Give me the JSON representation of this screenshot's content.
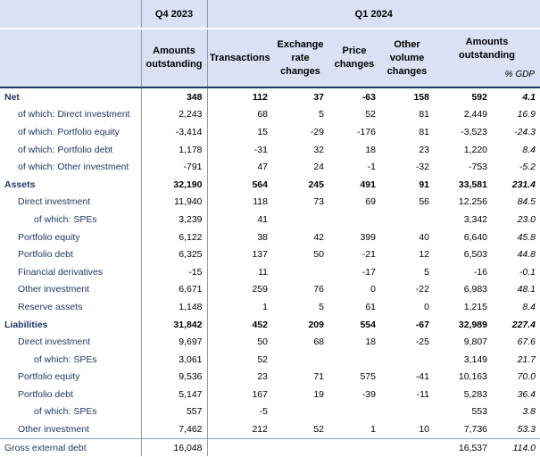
{
  "header": {
    "period_q4": "Q4 2023",
    "period_q1": "Q1 2024",
    "columns": {
      "amounts_outstanding_q4": "Amounts outstanding",
      "transactions": "Transactions",
      "exchange_rate_changes": "Exchange rate changes",
      "price_changes": "Price changes",
      "other_volume_changes": "Other volume changes",
      "amounts_outstanding_q1": "Amounts outstanding",
      "pct_gdp": "% GDP"
    }
  },
  "rows": [
    {
      "label": "Net",
      "style": "bold",
      "indent": 0,
      "q4": "348",
      "tr": "112",
      "ex": "37",
      "pr": "-63",
      "ov": "158",
      "ao": "592",
      "gdp": "4.1"
    },
    {
      "label": "of which: Direct investment",
      "style": "normal",
      "indent": 1,
      "q4": "2,243",
      "tr": "68",
      "ex": "5",
      "pr": "52",
      "ov": "81",
      "ao": "2,449",
      "gdp": "16.9"
    },
    {
      "label": "of which: Portfolio equity",
      "style": "normal",
      "indent": 1,
      "q4": "-3,414",
      "tr": "15",
      "ex": "-29",
      "pr": "-176",
      "ov": "81",
      "ao": "-3,523",
      "gdp": "-24.3"
    },
    {
      "label": "of which: Portfolio debt",
      "style": "normal",
      "indent": 1,
      "q4": "1,178",
      "tr": "-31",
      "ex": "32",
      "pr": "18",
      "ov": "23",
      "ao": "1,220",
      "gdp": "8.4"
    },
    {
      "label": "of which: Other investment",
      "style": "normal",
      "indent": 1,
      "q4": "-791",
      "tr": "47",
      "ex": "24",
      "pr": "-1",
      "ov": "-32",
      "ao": "-753",
      "gdp": "-5.2"
    },
    {
      "label": "Assets",
      "style": "bold",
      "indent": 0,
      "q4": "32,190",
      "tr": "564",
      "ex": "245",
      "pr": "491",
      "ov": "91",
      "ao": "33,581",
      "gdp": "231.4"
    },
    {
      "label": "Direct investment",
      "style": "normal",
      "indent": 1,
      "q4": "11,940",
      "tr": "118",
      "ex": "73",
      "pr": "69",
      "ov": "56",
      "ao": "12,256",
      "gdp": "84.5"
    },
    {
      "label": "of which: SPEs",
      "style": "normal",
      "indent": 2,
      "q4": "3,239",
      "tr": "41",
      "ex": "",
      "pr": "",
      "ov": "",
      "ao": "3,342",
      "gdp": "23.0"
    },
    {
      "label": "Portfolio equity",
      "style": "normal",
      "indent": 1,
      "q4": "6,122",
      "tr": "38",
      "ex": "42",
      "pr": "399",
      "ov": "40",
      "ao": "6,640",
      "gdp": "45.8"
    },
    {
      "label": "Portfolio debt",
      "style": "normal",
      "indent": 1,
      "q4": "6,325",
      "tr": "137",
      "ex": "50",
      "pr": "-21",
      "ov": "12",
      "ao": "6,503",
      "gdp": "44.8"
    },
    {
      "label": "Financial derivatives",
      "style": "normal",
      "indent": 1,
      "q4": "-15",
      "tr": "11",
      "ex": "",
      "pr": "-17",
      "ov": "5",
      "ao": "-16",
      "gdp": "-0.1"
    },
    {
      "label": "Other investment",
      "style": "normal",
      "indent": 1,
      "q4": "6,671",
      "tr": "259",
      "ex": "76",
      "pr": "0",
      "ov": "-22",
      "ao": "6,983",
      "gdp": "48.1"
    },
    {
      "label": "Reserve assets",
      "style": "normal",
      "indent": 1,
      "q4": "1,148",
      "tr": "1",
      "ex": "5",
      "pr": "61",
      "ov": "0",
      "ao": "1,215",
      "gdp": "8.4"
    },
    {
      "label": "Liabilities",
      "style": "bold",
      "indent": 0,
      "q4": "31,842",
      "tr": "452",
      "ex": "209",
      "pr": "554",
      "ov": "-67",
      "ao": "32,989",
      "gdp": "227.4"
    },
    {
      "label": "Direct investment",
      "style": "normal",
      "indent": 1,
      "q4": "9,697",
      "tr": "50",
      "ex": "68",
      "pr": "18",
      "ov": "-25",
      "ao": "9,807",
      "gdp": "67.6"
    },
    {
      "label": "of which: SPEs",
      "style": "normal",
      "indent": 2,
      "q4": "3,061",
      "tr": "52",
      "ex": "",
      "pr": "",
      "ov": "",
      "ao": "3,149",
      "gdp": "21.7"
    },
    {
      "label": "Portfolio equity",
      "style": "normal",
      "indent": 1,
      "q4": "9,536",
      "tr": "23",
      "ex": "71",
      "pr": "575",
      "ov": "-41",
      "ao": "10,163",
      "gdp": "70.0"
    },
    {
      "label": "Portfolio debt",
      "style": "normal",
      "indent": 1,
      "q4": "5,147",
      "tr": "167",
      "ex": "19",
      "pr": "-39",
      "ov": "-11",
      "ao": "5,283",
      "gdp": "36.4"
    },
    {
      "label": "of which: SPEs",
      "style": "normal",
      "indent": 2,
      "q4": "557",
      "tr": "-5",
      "ex": "",
      "pr": "",
      "ov": "",
      "ao": "553",
      "gdp": "3.8"
    },
    {
      "label": "Other investment",
      "style": "normal",
      "indent": 1,
      "q4": "7,462",
      "tr": "212",
      "ex": "52",
      "pr": "1",
      "ov": "10",
      "ao": "7,736",
      "gdp": "53.3"
    },
    {
      "label": "Gross external debt",
      "style": "total",
      "indent": 0,
      "q4": "16,048",
      "tr": "",
      "ex": "",
      "pr": "",
      "ov": "",
      "ao": "16,537",
      "gdp": "114.0"
    }
  ]
}
